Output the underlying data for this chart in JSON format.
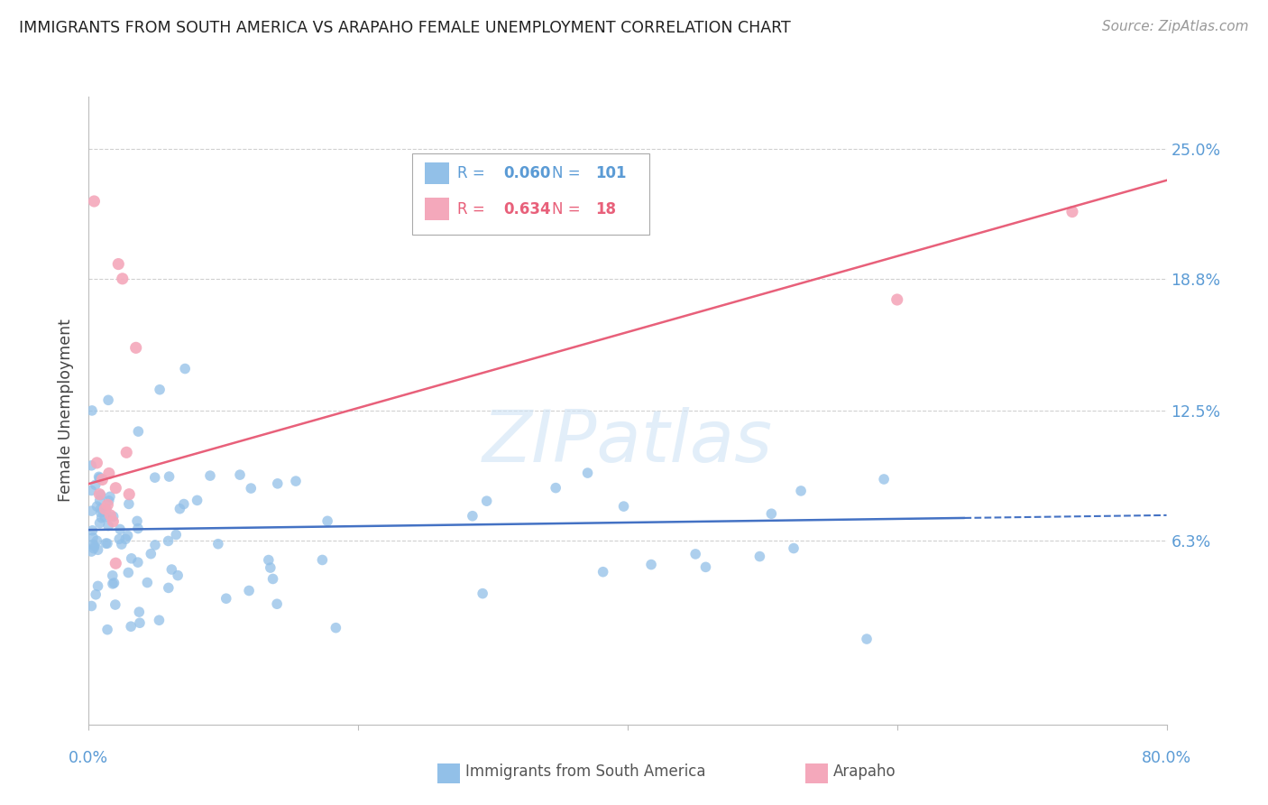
{
  "title": "IMMIGRANTS FROM SOUTH AMERICA VS ARAPAHO FEMALE UNEMPLOYMENT CORRELATION CHART",
  "source": "Source: ZipAtlas.com",
  "ylabel": "Female Unemployment",
  "ytick_values": [
    6.3,
    12.5,
    18.8,
    25.0
  ],
  "ytick_labels": [
    "6.3%",
    "12.5%",
    "18.8%",
    "25.0%"
  ],
  "xlim": [
    0.0,
    80.0
  ],
  "ylim": [
    -2.5,
    27.5
  ],
  "legend_blue_r": "0.060",
  "legend_blue_n": "101",
  "legend_pink_r": "0.634",
  "legend_pink_n": "18",
  "blue_color": "#92C0E8",
  "pink_color": "#F4A8BB",
  "blue_line_color": "#4472C4",
  "pink_line_color": "#E8607A",
  "axis_label_color": "#5B9BD5",
  "watermark": "ZIPatlas",
  "blue_trend_y0": 6.8,
  "blue_trend_y1": 7.5,
  "pink_trend_y0": 9.0,
  "pink_trend_y1": 23.5
}
